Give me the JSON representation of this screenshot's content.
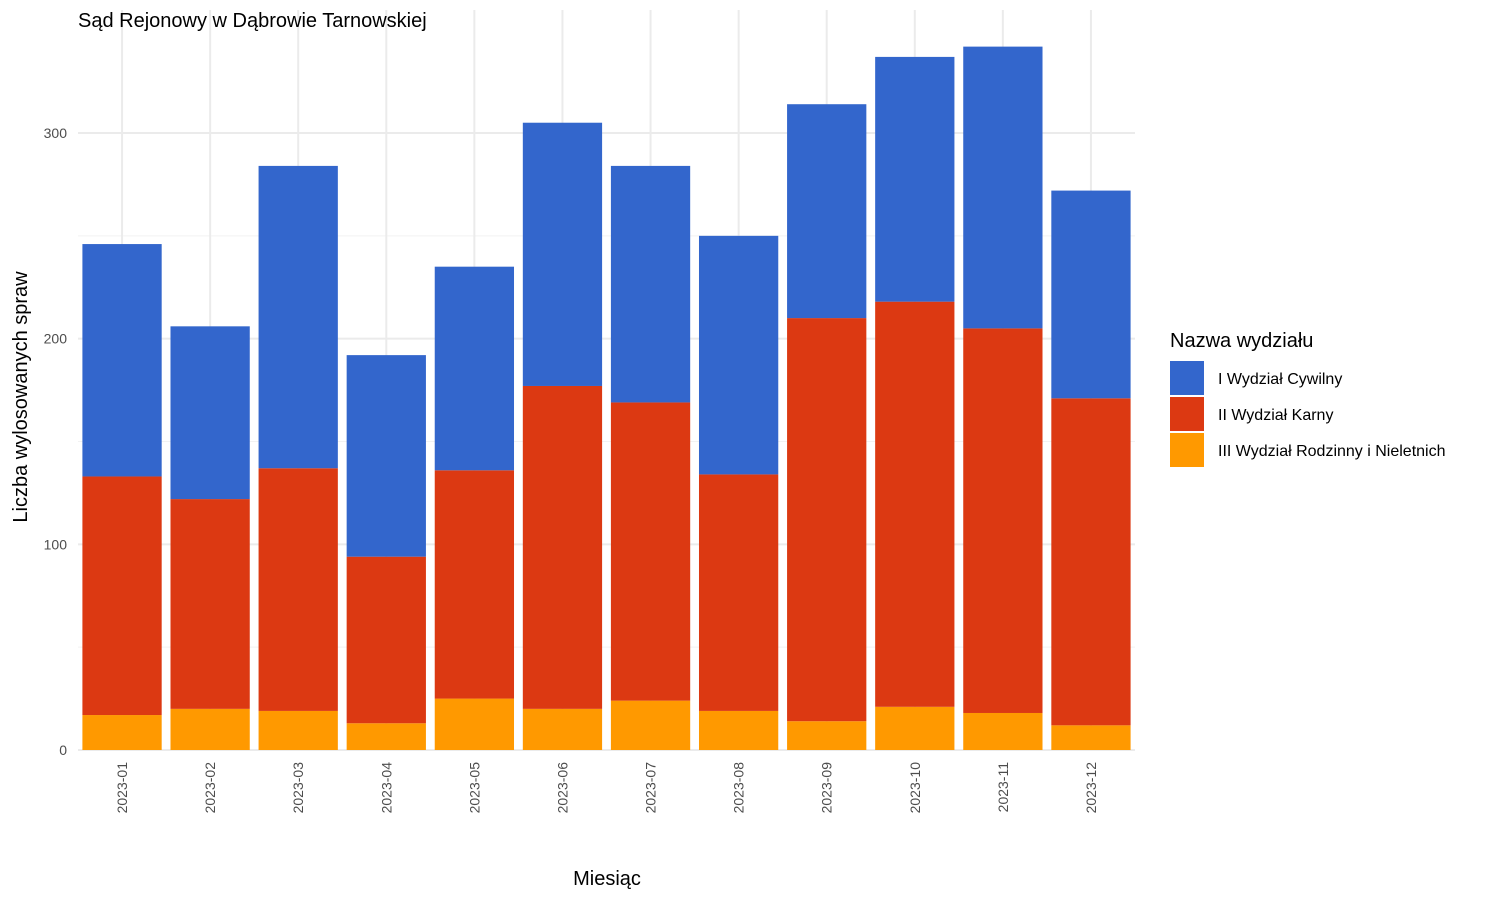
{
  "chart_data": {
    "type": "bar",
    "stacked": true,
    "title": "Sąd Rejonowy w Dąbrowie Tarnowskiej",
    "xlabel": "Miesiąc",
    "ylabel": "Liczba wylosowanych spraw",
    "ylim": [
      0,
      345
    ],
    "y_ticks": [
      0,
      100,
      200,
      300
    ],
    "grid": true,
    "legend_title": "Nazwa wydziału",
    "legend_position": "right",
    "categories": [
      "2023-01",
      "2023-02",
      "2023-03",
      "2023-04",
      "2023-05",
      "2023-06",
      "2023-07",
      "2023-08",
      "2023-09",
      "2023-10",
      "2023-11",
      "2023-12"
    ],
    "series": [
      {
        "name": "III Wydział Rodzinny i Nieletnich",
        "color": "#FF9900",
        "values": [
          17,
          20,
          19,
          13,
          25,
          20,
          24,
          19,
          14,
          21,
          18,
          12
        ]
      },
      {
        "name": "II Wydział Karny",
        "color": "#DC3912",
        "values": [
          116,
          102,
          118,
          81,
          111,
          157,
          145,
          115,
          196,
          197,
          187,
          159
        ]
      },
      {
        "name": "I Wydział Cywilny",
        "color": "#3366CC",
        "values": [
          113,
          84,
          147,
          98,
          99,
          128,
          115,
          116,
          104,
          119,
          137,
          101
        ]
      }
    ],
    "legend_order": [
      "I Wydział Cywilny",
      "II Wydział Karny",
      "III Wydział Rodzinny i Nieletnich"
    ]
  }
}
